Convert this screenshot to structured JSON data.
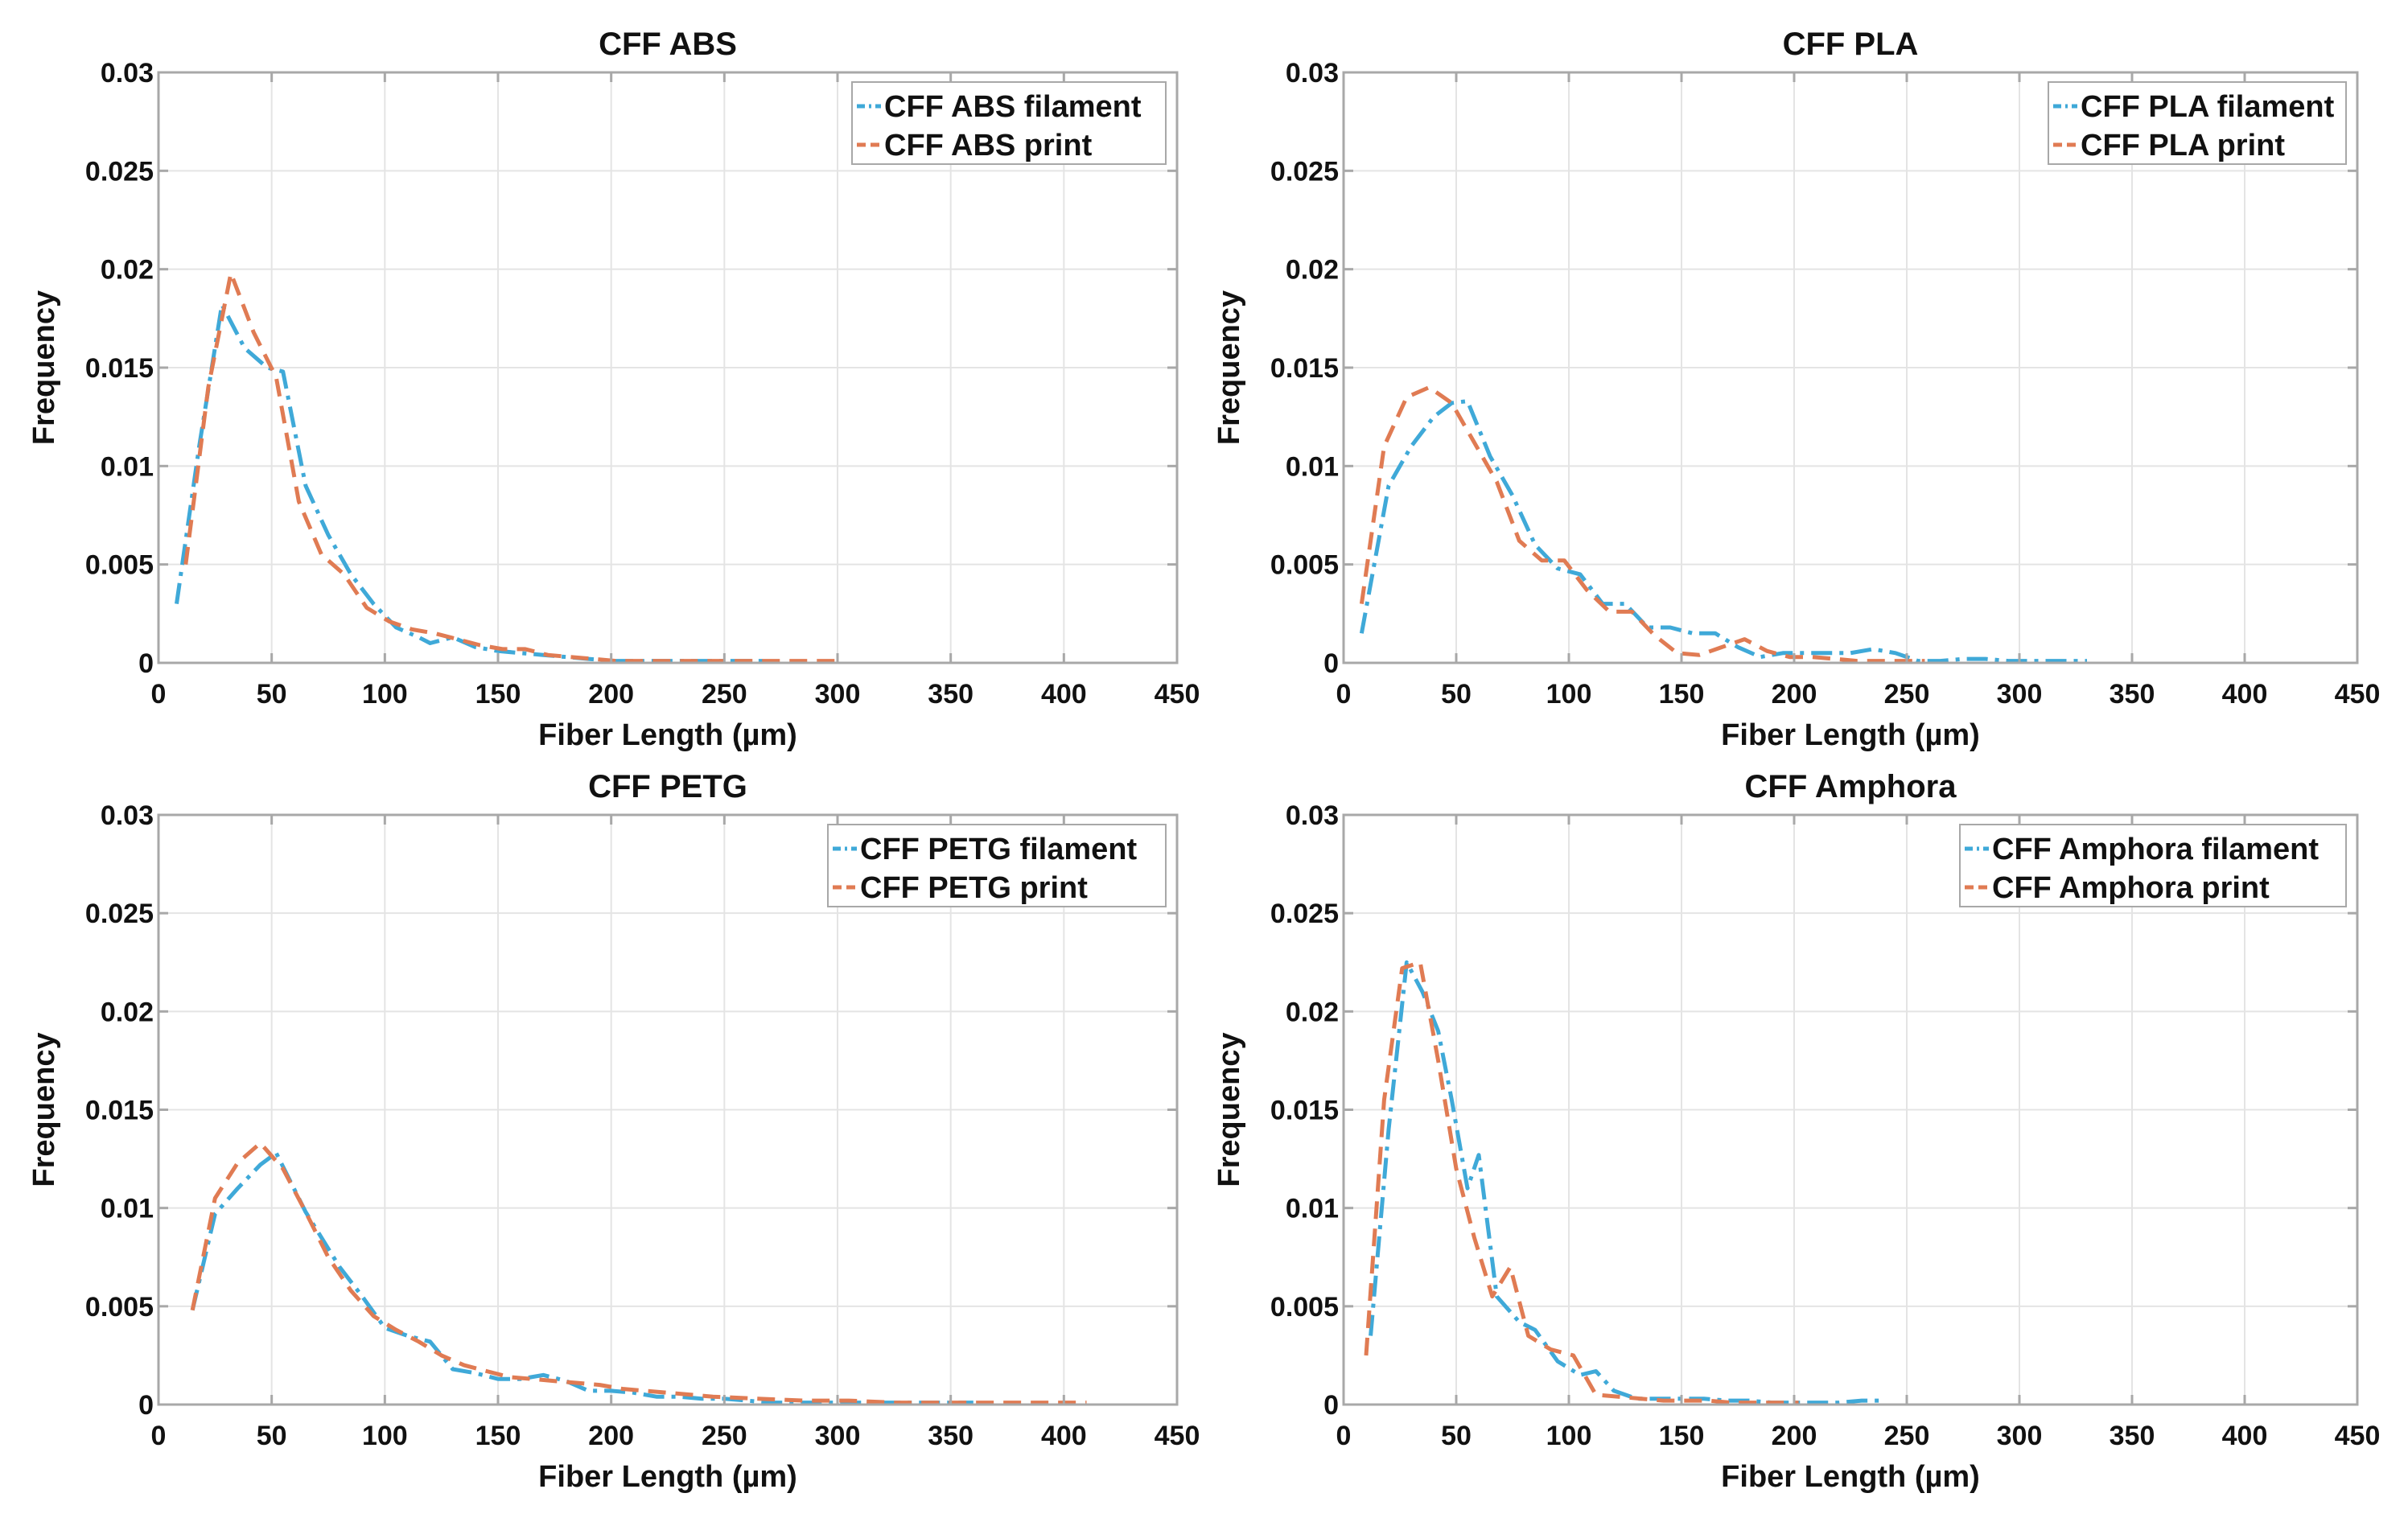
{
  "chart_data": [
    {
      "type": "line",
      "title": "CFF ABS",
      "xlabel": "Fiber Length (µm)",
      "ylabel": "Frequency",
      "xlim": [
        0,
        450
      ],
      "ylim": [
        0,
        0.03
      ],
      "xticks": [
        0,
        50,
        100,
        150,
        200,
        250,
        300,
        350,
        400,
        450
      ],
      "xtick_labels": [
        "0",
        "50",
        "100",
        "150",
        "200",
        "250",
        "300",
        "350",
        "400",
        "450"
      ],
      "yticks": [
        0,
        0.005,
        0.01,
        0.015,
        0.02,
        0.025,
        0.03
      ],
      "ytick_labels": [
        "0",
        "0.005",
        "0.01",
        "0.015",
        "0.02",
        "0.025",
        "0.03"
      ],
      "grid": true,
      "legend": "top-right",
      "series": [
        {
          "name": "CFF ABS filament",
          "color": "#3fa9d8",
          "dash": "dashdot",
          "x": [
            8,
            18,
            28,
            38,
            48,
            55,
            65,
            75,
            85,
            95,
            105,
            115,
            120,
            130,
            140,
            150,
            160,
            170,
            180,
            190,
            200,
            210,
            220,
            230,
            240,
            250,
            260,
            270
          ],
          "y": [
            0.003,
            0.011,
            0.0182,
            0.016,
            0.015,
            0.0148,
            0.009,
            0.0065,
            0.0045,
            0.003,
            0.0018,
            0.0013,
            0.001,
            0.0013,
            0.0008,
            0.0006,
            0.0005,
            0.0004,
            0.0003,
            0.0002,
            0.0001,
            0.0001,
            0.0001,
            0.0001,
            0.0001,
            0.0001,
            0.0001,
            0.0001
          ]
        },
        {
          "name": "CFF ABS print",
          "color": "#e07b53",
          "dash": "dash",
          "x": [
            12,
            22,
            32,
            42,
            52,
            62,
            72,
            82,
            92,
            102,
            112,
            122,
            132,
            142,
            152,
            162,
            172,
            182,
            192,
            202,
            222,
            242,
            262,
            282,
            302
          ],
          "y": [
            0.005,
            0.014,
            0.0198,
            0.0168,
            0.0145,
            0.0082,
            0.0055,
            0.0045,
            0.0028,
            0.0021,
            0.0017,
            0.0015,
            0.0012,
            0.0009,
            0.0007,
            0.0007,
            0.0004,
            0.0003,
            0.0002,
            0.0001,
            0.0001,
            0.0001,
            0.0001,
            0.0001,
            0.0001
          ]
        }
      ]
    },
    {
      "type": "line",
      "title": "CFF PLA",
      "xlabel": "Fiber Length (µm)",
      "ylabel": "Frequency",
      "xlim": [
        0,
        450
      ],
      "ylim": [
        0,
        0.03
      ],
      "xticks": [
        0,
        50,
        100,
        150,
        200,
        250,
        300,
        350,
        400,
        450
      ],
      "xtick_labels": [
        "0",
        "50",
        "100",
        "150",
        "200",
        "250",
        "300",
        "350",
        "400",
        "450"
      ],
      "yticks": [
        0,
        0.005,
        0.01,
        0.015,
        0.02,
        0.025,
        0.03
      ],
      "ytick_labels": [
        "0",
        "0.005",
        "0.01",
        "0.015",
        "0.02",
        "0.025",
        "0.03"
      ],
      "grid": true,
      "legend": "top-right",
      "series": [
        {
          "name": "CFF PLA filament",
          "color": "#3fa9d8",
          "dash": "dashdot",
          "x": [
            8,
            20,
            30,
            40,
            48,
            55,
            65,
            75,
            85,
            95,
            105,
            115,
            125,
            135,
            145,
            155,
            165,
            175,
            185,
            195,
            205,
            215,
            225,
            235,
            245,
            255,
            265,
            275,
            285,
            295,
            305,
            315,
            325,
            330
          ],
          "y": [
            0.0015,
            0.009,
            0.011,
            0.0125,
            0.0132,
            0.0133,
            0.0105,
            0.0085,
            0.006,
            0.0048,
            0.0045,
            0.003,
            0.003,
            0.0018,
            0.0018,
            0.0015,
            0.0015,
            0.0008,
            0.0003,
            0.0005,
            0.0005,
            0.0005,
            0.0005,
            0.0007,
            0.0005,
            0.0001,
            0.0001,
            0.0002,
            0.0002,
            0.0001,
            0.0001,
            0.0001,
            0.0001,
            0.0001
          ]
        },
        {
          "name": "CFF PLA print",
          "color": "#e07b53",
          "dash": "dash",
          "x": [
            8,
            18,
            28,
            38,
            48,
            58,
            68,
            78,
            88,
            98,
            108,
            118,
            128,
            138,
            148,
            158,
            168,
            178,
            188,
            198,
            208,
            218,
            228,
            238,
            248,
            258
          ],
          "y": [
            0.003,
            0.011,
            0.0135,
            0.014,
            0.0132,
            0.0112,
            0.0092,
            0.0062,
            0.0052,
            0.0052,
            0.0037,
            0.0026,
            0.0026,
            0.0014,
            0.0005,
            0.0004,
            0.0008,
            0.0012,
            0.0006,
            0.0003,
            0.0003,
            0.0002,
            0.0001,
            0.0001,
            0.0001,
            0.0001
          ]
        }
      ]
    },
    {
      "type": "line",
      "title": "CFF PETG",
      "xlabel": "Fiber Length (µm)",
      "ylabel": "Frequency",
      "xlim": [
        0,
        450
      ],
      "ylim": [
        0,
        0.03
      ],
      "xticks": [
        0,
        50,
        100,
        150,
        200,
        250,
        300,
        350,
        400,
        450
      ],
      "xtick_labels": [
        "0",
        "50",
        "100",
        "150",
        "200",
        "250",
        "300",
        "350",
        "400",
        "450"
      ],
      "yticks": [
        0,
        0.005,
        0.01,
        0.015,
        0.02,
        0.025,
        0.03
      ],
      "ytick_labels": [
        "0",
        "0.005",
        "0.01",
        "0.015",
        "0.02",
        "0.025",
        "0.03"
      ],
      "grid": true,
      "legend": "top-right",
      "series": [
        {
          "name": "CFF PETG filament",
          "color": "#3fa9d8",
          "dash": "dashdot",
          "x": [
            15,
            25,
            35,
            45,
            52,
            65,
            80,
            90,
            100,
            110,
            120,
            130,
            140,
            150,
            160,
            170,
            180,
            190,
            200,
            210,
            220,
            230,
            240,
            250,
            260,
            270,
            280,
            300,
            320,
            340,
            360
          ],
          "y": [
            0.0048,
            0.0097,
            0.011,
            0.0122,
            0.0128,
            0.0098,
            0.007,
            0.0055,
            0.0039,
            0.0035,
            0.0032,
            0.0018,
            0.0016,
            0.0013,
            0.0013,
            0.0015,
            0.0012,
            0.0007,
            0.0007,
            0.0006,
            0.0004,
            0.0004,
            0.0003,
            0.0003,
            0.0002,
            0.0001,
            0.0001,
            0.0001,
            0.0001,
            0.0001,
            0.0001
          ]
        },
        {
          "name": "CFF PETG print",
          "color": "#e07b53",
          "dash": "dash",
          "x": [
            15,
            25,
            35,
            45,
            55,
            65,
            75,
            85,
            95,
            105,
            115,
            125,
            135,
            145,
            155,
            165,
            175,
            185,
            195,
            205,
            225,
            245,
            265,
            285,
            305,
            325,
            345,
            365,
            385,
            410
          ],
          "y": [
            0.0048,
            0.0105,
            0.0123,
            0.0133,
            0.012,
            0.0098,
            0.0075,
            0.0058,
            0.0045,
            0.0038,
            0.0032,
            0.0025,
            0.002,
            0.0017,
            0.0014,
            0.0013,
            0.0012,
            0.0011,
            0.001,
            0.0008,
            0.0006,
            0.0004,
            0.0003,
            0.0002,
            0.0002,
            0.0001,
            0.0001,
            0.0001,
            0.0001,
            0.0001
          ]
        }
      ]
    },
    {
      "type": "line",
      "title": "CFF Amphora",
      "xlabel": "Fiber Length (µm)",
      "ylabel": "Frequency",
      "xlim": [
        0,
        450
      ],
      "ylim": [
        0,
        0.03
      ],
      "xticks": [
        0,
        50,
        100,
        150,
        200,
        250,
        300,
        350,
        400,
        450
      ],
      "xtick_labels": [
        "0",
        "50",
        "100",
        "150",
        "200",
        "250",
        "300",
        "350",
        "400",
        "450"
      ],
      "yticks": [
        0,
        0.005,
        0.01,
        0.015,
        0.02,
        0.025,
        0.03
      ],
      "ytick_labels": [
        "0",
        "0.005",
        "0.01",
        "0.015",
        "0.02",
        "0.025",
        "0.03"
      ],
      "grid": true,
      "legend": "top-right",
      "series": [
        {
          "name": "CFF Amphora filament",
          "color": "#3fa9d8",
          "dash": "dashdot",
          "x": [
            12,
            20,
            28,
            35,
            42,
            48,
            55,
            60,
            68,
            78,
            85,
            95,
            105,
            112,
            120,
            130,
            140,
            150,
            160,
            170,
            180,
            190,
            200,
            210,
            220,
            230,
            240
          ],
          "y": [
            0.0035,
            0.014,
            0.0225,
            0.021,
            0.019,
            0.0155,
            0.011,
            0.0127,
            0.0055,
            0.0042,
            0.0038,
            0.0022,
            0.0015,
            0.0017,
            0.0007,
            0.0003,
            0.0003,
            0.0003,
            0.0003,
            0.0002,
            0.0002,
            0.0001,
            0.0001,
            0.0001,
            0.0001,
            0.0002,
            0.0002
          ]
        },
        {
          "name": "CFF Amphora print",
          "color": "#e07b53",
          "dash": "dash",
          "x": [
            10,
            18,
            26,
            34,
            42,
            50,
            58,
            66,
            74,
            82,
            92,
            102,
            112,
            122,
            132,
            142,
            152,
            162,
            172,
            182,
            192,
            202
          ],
          "y": [
            0.0025,
            0.0155,
            0.0222,
            0.0225,
            0.0175,
            0.012,
            0.0085,
            0.0055,
            0.007,
            0.0035,
            0.0028,
            0.0025,
            0.0005,
            0.0004,
            0.0003,
            0.0002,
            0.0002,
            0.0002,
            0.0001,
            0.0001,
            0.0001,
            0.0001
          ]
        }
      ]
    }
  ],
  "colors": {
    "axes": "#a8a8a8",
    "grid": "#e4e4e4",
    "text": "#111111"
  }
}
